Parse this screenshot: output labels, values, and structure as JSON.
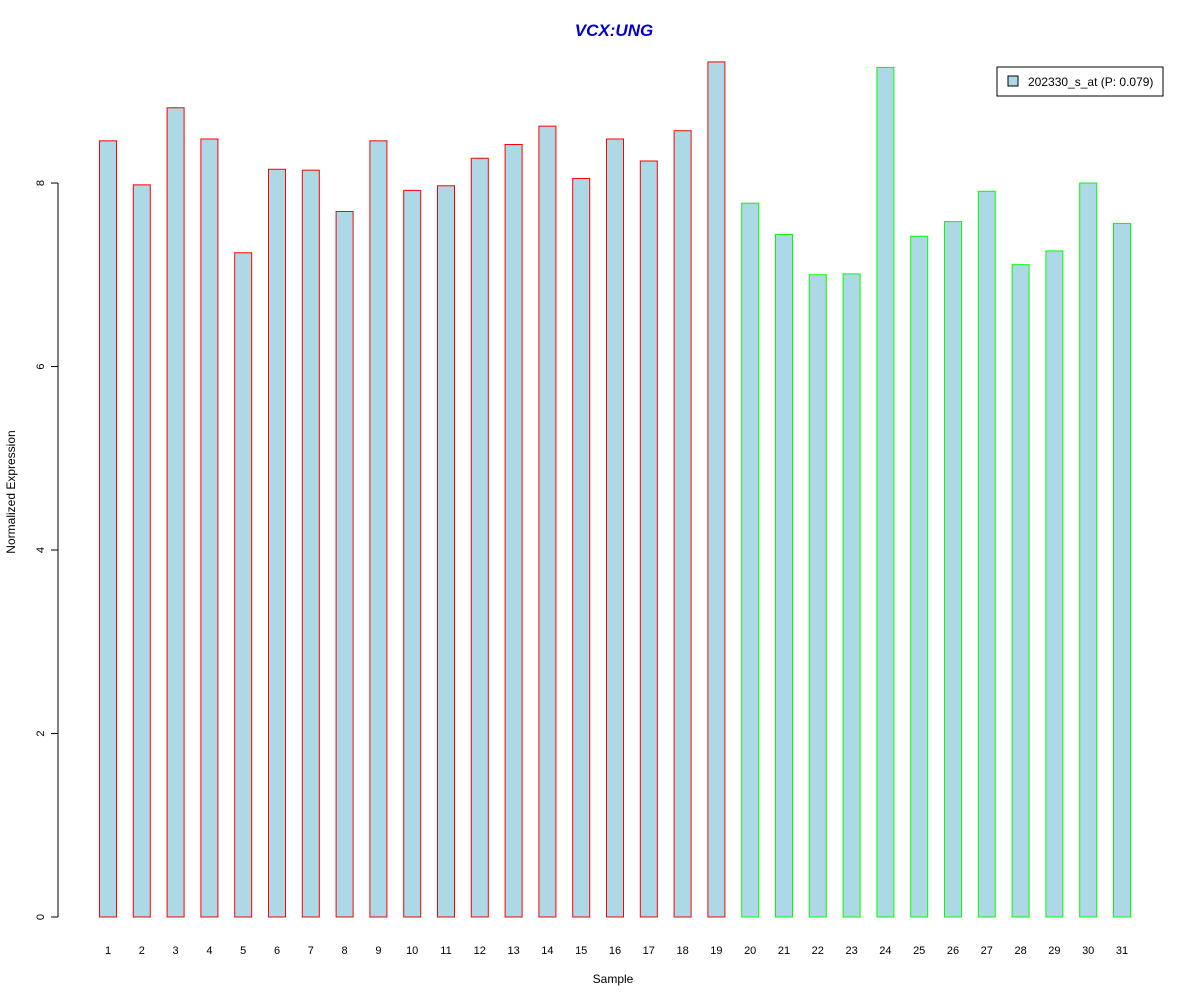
{
  "chart_data": {
    "type": "bar",
    "title": "VCX:UNG",
    "xlabel": "Sample",
    "ylabel": "Normalized Expression",
    "ylim": [
      0,
      9.45
    ],
    "yticks": [
      0,
      2,
      4,
      6,
      8
    ],
    "categories": [
      "1",
      "2",
      "3",
      "4",
      "5",
      "6",
      "7",
      "8",
      "9",
      "10",
      "11",
      "12",
      "13",
      "14",
      "15",
      "16",
      "17",
      "18",
      "19",
      "20",
      "21",
      "22",
      "23",
      "24",
      "25",
      "26",
      "27",
      "28",
      "29",
      "30",
      "31"
    ],
    "series": [
      {
        "name": "202330_s_at (P: 0.079)",
        "values": [
          8.46,
          7.98,
          8.82,
          8.48,
          7.24,
          8.15,
          8.14,
          7.69,
          8.46,
          7.92,
          7.97,
          8.27,
          8.42,
          8.62,
          8.05,
          8.48,
          8.24,
          8.57,
          9.32,
          7.78,
          7.44,
          7.0,
          7.01,
          9.26,
          7.42,
          7.58,
          7.91,
          7.11,
          7.26,
          8.0,
          7.56
        ]
      }
    ],
    "group_border_colors": [
      "#ff0000",
      "#ff0000",
      "#ff0000",
      "#ff0000",
      "#ff0000",
      "#ff0000",
      "#ff0000",
      "#ff0000",
      "#ff0000",
      "#ff0000",
      "#ff0000",
      "#ff0000",
      "#ff0000",
      "#ff0000",
      "#ff0000",
      "#ff0000",
      "#ff0000",
      "#ff0000",
      "#ff0000",
      "#00ff00",
      "#00ff00",
      "#00ff00",
      "#00ff00",
      "#00ff00",
      "#00ff00",
      "#00ff00",
      "#00ff00",
      "#00ff00",
      "#00ff00",
      "#00ff00",
      "#00ff00"
    ],
    "bar_fill_color": "#add8e6",
    "title_color": "#0000cc",
    "legend_position": "top-right",
    "grid": false
  }
}
